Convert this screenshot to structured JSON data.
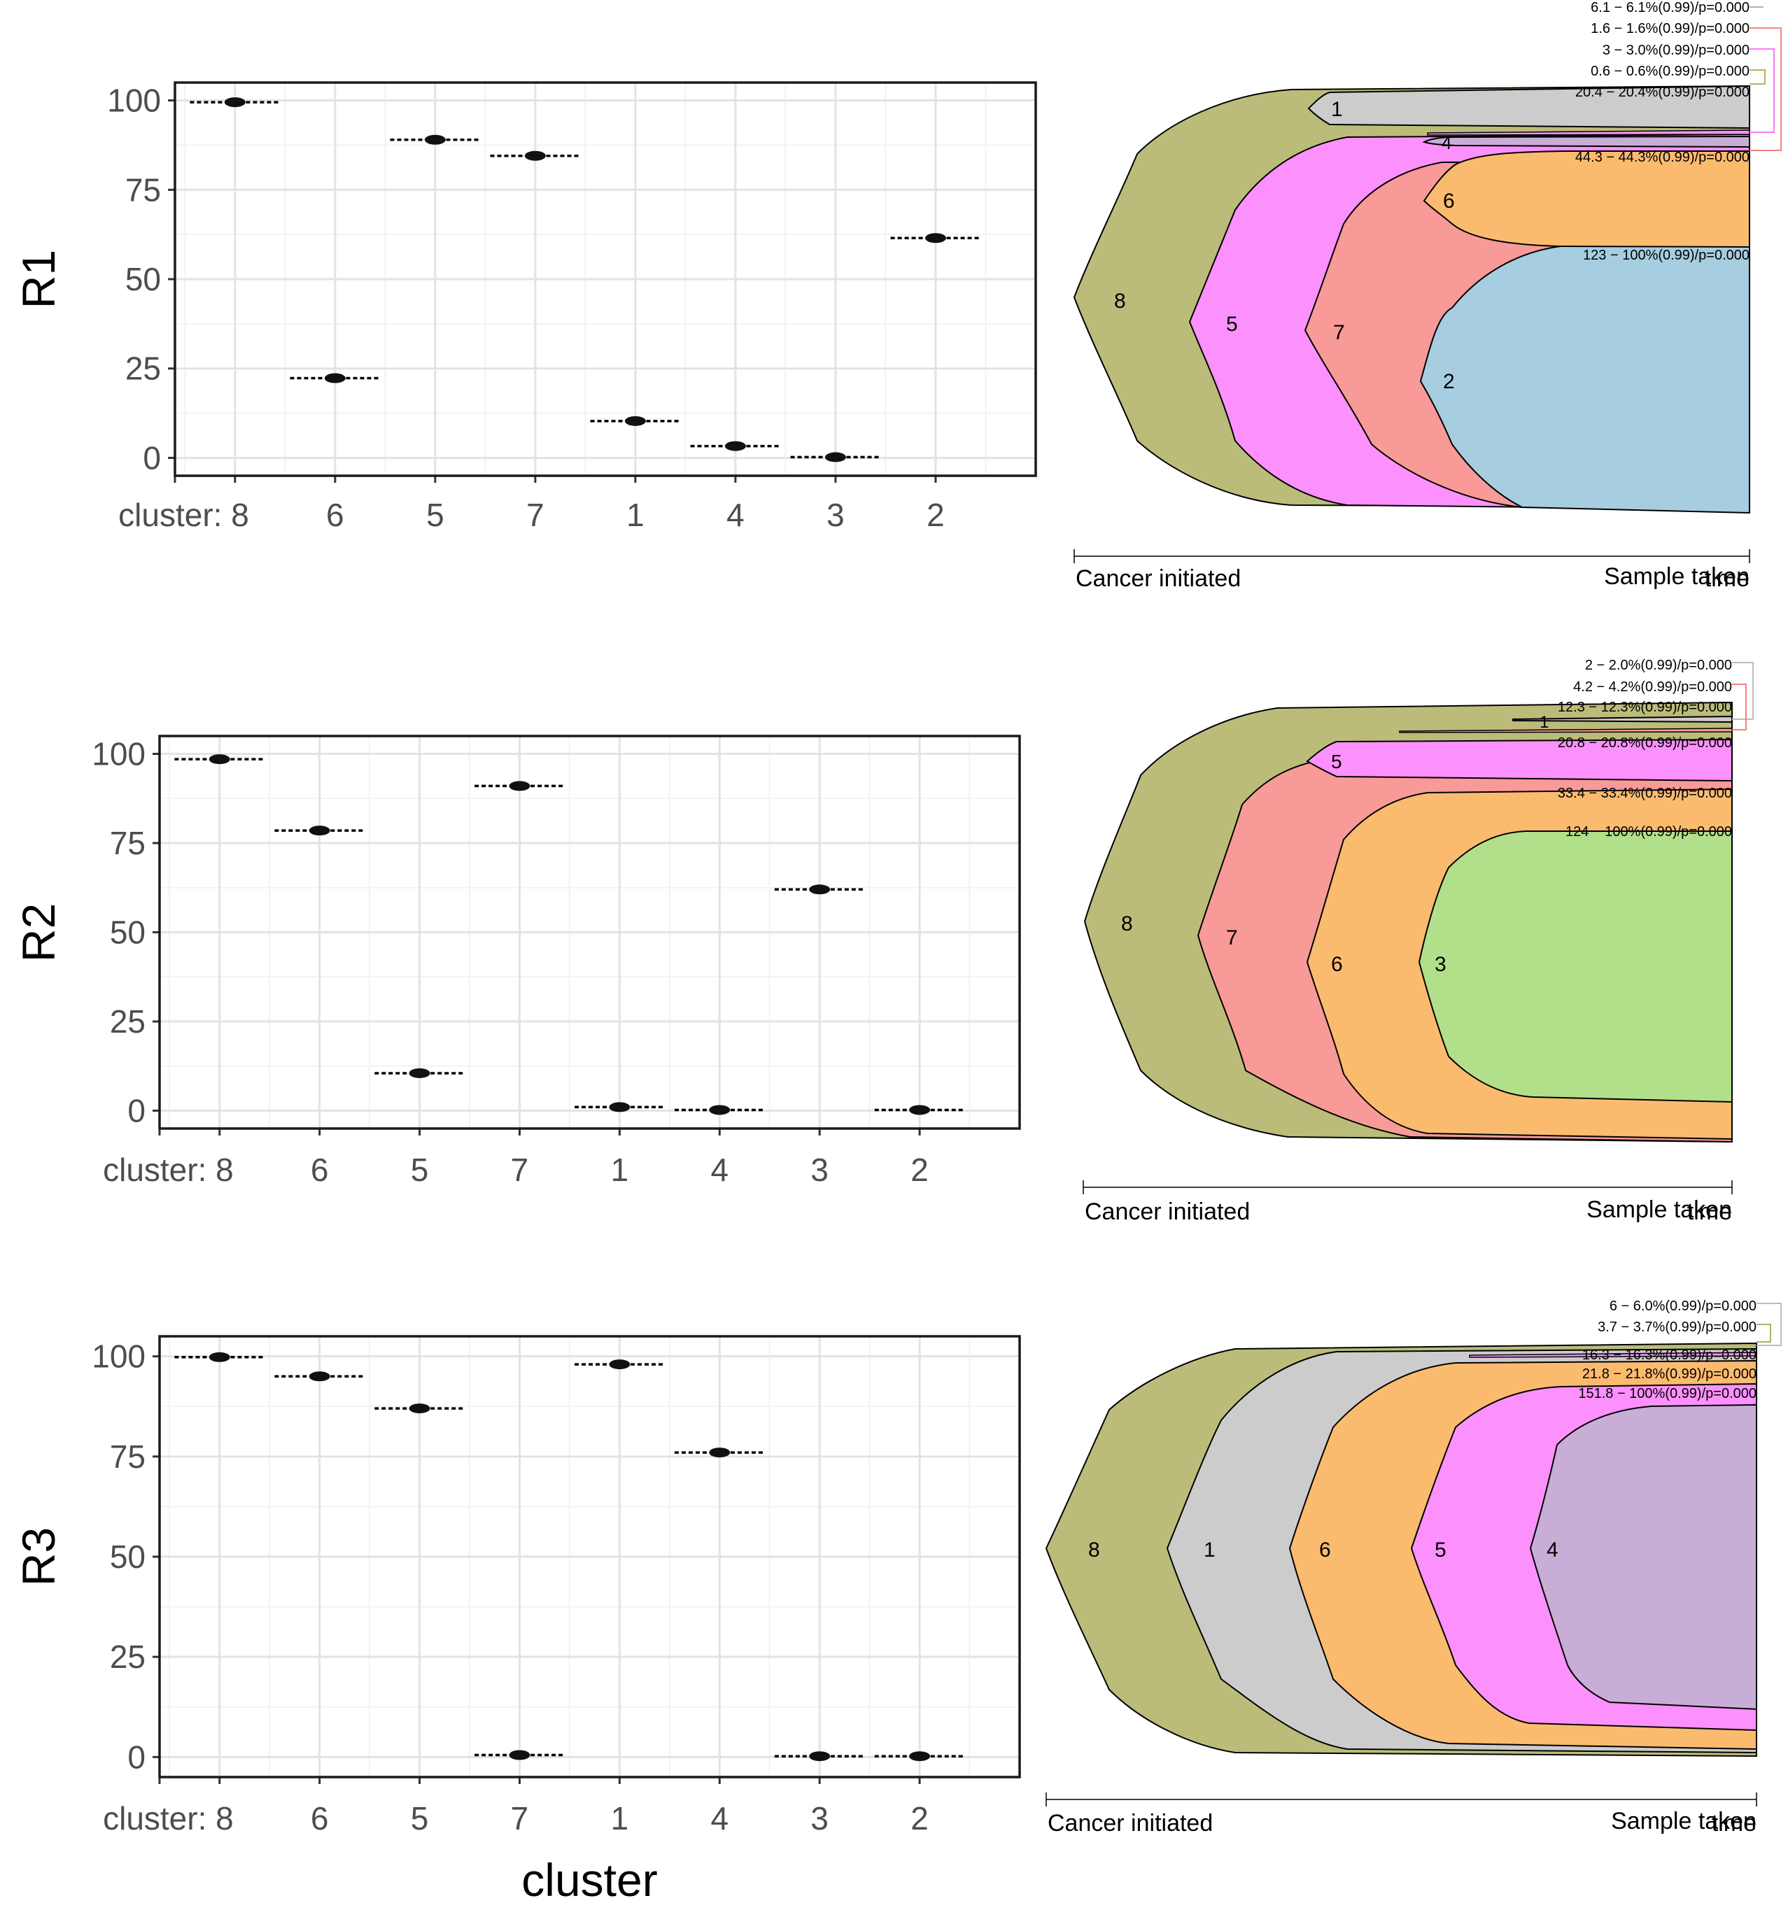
{
  "chart_data": [
    {
      "type": "scatter",
      "ylabel": "R1",
      "xlabel": "",
      "ylim": [
        -5,
        105
      ],
      "yticks": [
        "0",
        "25",
        "50",
        "75",
        "100"
      ],
      "categories": [
        "cluster: 8",
        "6",
        "5",
        "7",
        "1",
        "4",
        "3",
        "2"
      ],
      "values": [
        99.5,
        22.3,
        89,
        84.5,
        10.3,
        3.3,
        0.2,
        61.5
      ],
      "grid": true
    },
    {
      "type": "scatter",
      "ylabel": "R2",
      "xlabel": "",
      "ylim": [
        -5,
        105
      ],
      "yticks": [
        "0",
        "25",
        "50",
        "75",
        "100"
      ],
      "categories": [
        "cluster: 8",
        "6",
        "5",
        "7",
        "1",
        "4",
        "3",
        "2"
      ],
      "values": [
        98.5,
        78.5,
        10.5,
        91,
        1.0,
        0.2,
        62,
        0.2
      ],
      "grid": true
    },
    {
      "type": "scatter",
      "ylabel": "R3",
      "xlabel": "cluster",
      "ylim": [
        -5,
        105
      ],
      "yticks": [
        "0",
        "25",
        "50",
        "75",
        "100"
      ],
      "categories": [
        "cluster: 8",
        "6",
        "5",
        "7",
        "1",
        "4",
        "3",
        "2"
      ],
      "values": [
        99.8,
        95,
        87,
        0.5,
        98,
        76,
        0.2,
        0.2
      ],
      "grid": true
    }
  ],
  "fishplots": [
    {
      "axis_left": "Cancer initiated",
      "axis_right": "Sample taken",
      "axis_time": "time",
      "clone_labels": [
        "8",
        "5",
        "7",
        "2",
        "6",
        "1",
        "4"
      ],
      "annotations": [
        "6.1 − 6.1%(0.99)/p=0.000",
        "1.6 − 1.6%(0.99)/p=0.000",
        "3 − 3.0%(0.99)/p=0.000",
        "0.6 − 0.6%(0.99)/p=0.000",
        "20.4 − 20.4%(0.99)/p=0.000",
        "44.3 − 44.3%(0.99)/p=0.000",
        "123 − 100%(0.99)/p=0.000"
      ]
    },
    {
      "axis_left": "Cancer initiated",
      "axis_right": "Sample taken",
      "axis_time": "time",
      "clone_labels": [
        "8",
        "7",
        "6",
        "3",
        "5",
        "1"
      ],
      "annotations": [
        "2 − 2.0%(0.99)/p=0.000",
        "4.2 − 4.2%(0.99)/p=0.000",
        "12.3 − 12.3%(0.99)/p=0.000",
        "20.8 − 20.8%(0.99)/p=0.000",
        "33.4 − 33.4%(0.99)/p=0.000",
        "124 − 100%(0.99)/p=0.000"
      ]
    },
    {
      "axis_left": "Cancer initiated",
      "axis_right": "Sample taken",
      "axis_time": "time",
      "clone_labels": [
        "8",
        "1",
        "6",
        "5",
        "4"
      ],
      "annotations": [
        "6 − 6.0%(0.99)/p=0.000",
        "3.7 − 3.7%(0.99)/p=0.000",
        "16.3 − 16.3%(0.99)/p=0.000",
        "21.8 − 21.8%(0.99)/p=0.000",
        "151.8 − 100%(0.99)/p=0.000"
      ]
    }
  ],
  "colors": {
    "clone_8": "#bcbc7a",
    "clone_5": "#fc90fc",
    "clone_7": "#f89a98",
    "clone_2": "#a6cde0",
    "clone_6": "#fbbb6f",
    "clone_1": "#cccccc",
    "clone_4": "#c8aed6",
    "clone_3": "#b2df8a",
    "grid_major": "#e3e3e3",
    "grid_minor": "#f2f2f2"
  }
}
